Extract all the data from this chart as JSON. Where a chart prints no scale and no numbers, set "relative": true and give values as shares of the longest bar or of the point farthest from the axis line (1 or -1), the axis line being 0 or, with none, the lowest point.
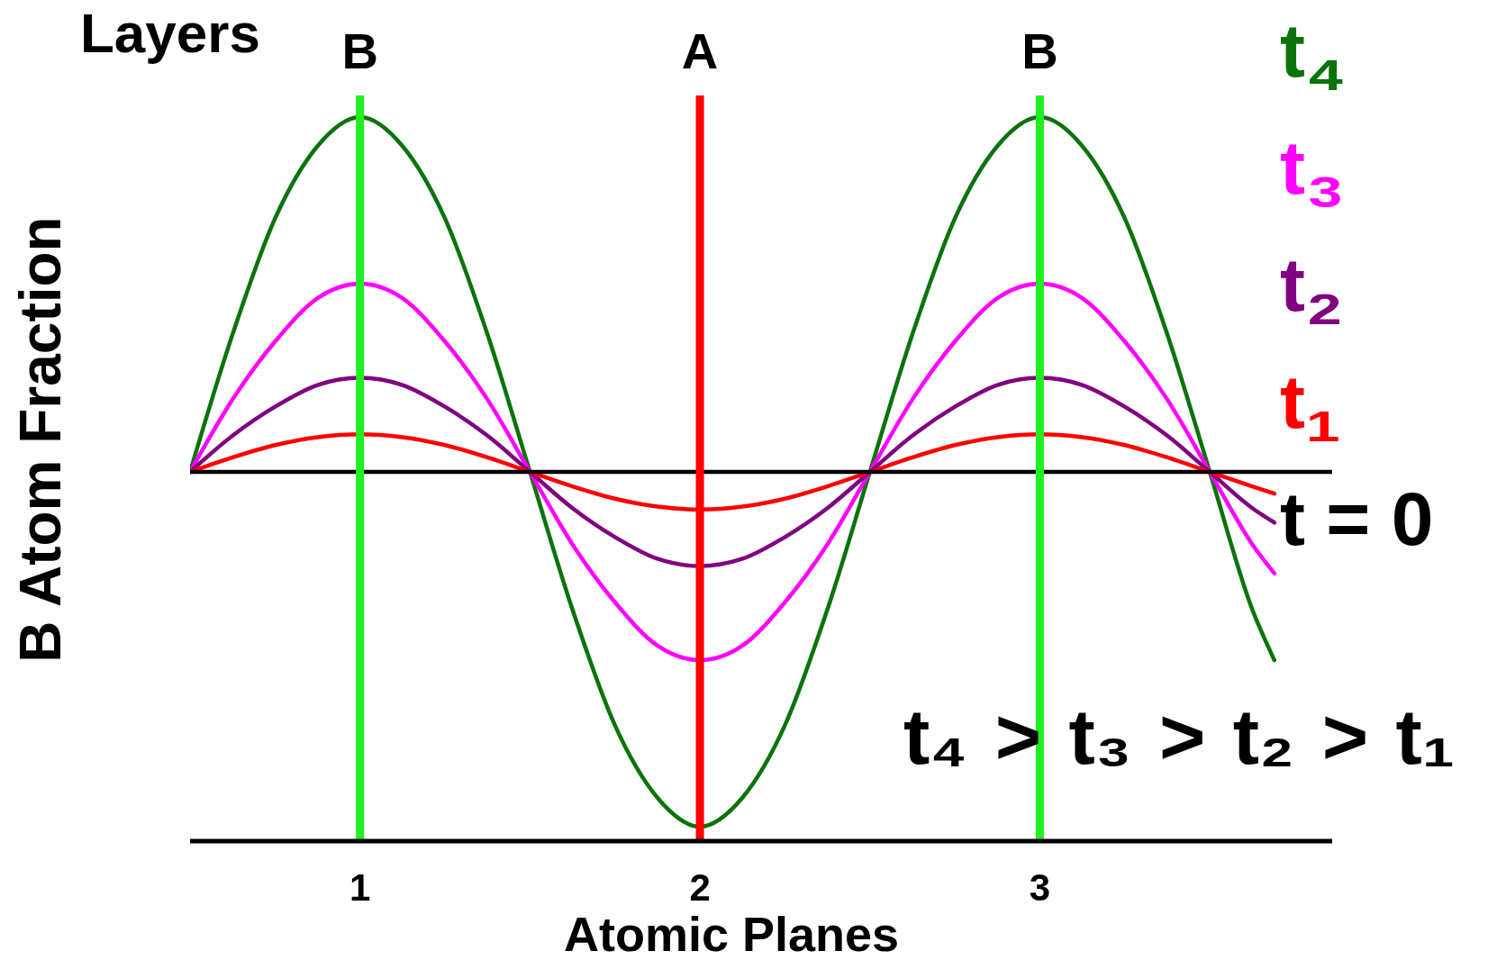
{
  "chart_data": {
    "type": "line",
    "relative": true,
    "xlabel": "Atomic Planes",
    "ylabel": "B Atom Fraction",
    "x": [
      0.5,
      0.625,
      0.75,
      0.875,
      1,
      1.125,
      1.25,
      1.375,
      1.5,
      1.625,
      1.75,
      1.875,
      2,
      2.125,
      2.25,
      2.375,
      2.5,
      2.625,
      2.75,
      2.875,
      3,
      3.125,
      3.25,
      3.375,
      3.5,
      3.625,
      3.69
    ],
    "xlim": [
      0.5,
      3.86
    ],
    "xticks": [
      1,
      2,
      3
    ],
    "series": [
      {
        "name": "t₄",
        "color": "#0a730a",
        "values": [
          0.51,
          0.7,
          0.86,
          0.96,
          1.0,
          0.96,
          0.86,
          0.7,
          0.51,
          0.32,
          0.16,
          0.06,
          0.02,
          0.06,
          0.16,
          0.32,
          0.51,
          0.7,
          0.86,
          0.96,
          1.0,
          0.96,
          0.86,
          0.7,
          0.51,
          0.32,
          0.25
        ]
      },
      {
        "name": "t₃",
        "color": "#ff00ff",
        "values": [
          0.51,
          0.61,
          0.69,
          0.75,
          0.77,
          0.75,
          0.69,
          0.61,
          0.51,
          0.41,
          0.33,
          0.27,
          0.25,
          0.27,
          0.33,
          0.41,
          0.51,
          0.61,
          0.69,
          0.75,
          0.77,
          0.75,
          0.69,
          0.61,
          0.51,
          0.41,
          0.37
        ]
      },
      {
        "name": "t₂",
        "color": "#800080",
        "values": [
          0.51,
          0.56,
          0.6,
          0.63,
          0.64,
          0.63,
          0.6,
          0.56,
          0.51,
          0.46,
          0.42,
          0.39,
          0.38,
          0.39,
          0.42,
          0.46,
          0.51,
          0.56,
          0.6,
          0.63,
          0.64,
          0.63,
          0.6,
          0.56,
          0.51,
          0.46,
          0.44
        ]
      },
      {
        "name": "t₁",
        "color": "#ff0000",
        "values": [
          0.51,
          0.53,
          0.547,
          0.558,
          0.562,
          0.558,
          0.547,
          0.53,
          0.51,
          0.49,
          0.473,
          0.462,
          0.458,
          0.462,
          0.473,
          0.49,
          0.51,
          0.53,
          0.547,
          0.558,
          0.562,
          0.558,
          0.547,
          0.53,
          0.51,
          0.49,
          0.48
        ]
      },
      {
        "name": "t = 0",
        "color": "#000000",
        "x": [
          0.5,
          3.86
        ],
        "values": [
          0.51,
          0.51
        ]
      }
    ],
    "ref_lines": [
      {
        "axis": "x",
        "value": 1,
        "label": "B",
        "color": "#20ee20"
      },
      {
        "axis": "x",
        "value": 2,
        "label": "A",
        "color": "#ff0000"
      },
      {
        "axis": "x",
        "value": 3,
        "label": "B",
        "color": "#20ee20"
      }
    ],
    "annotations": [
      "Layers",
      "t₄ > t₃ > t₂ > t₁"
    ],
    "legend": "right"
  }
}
